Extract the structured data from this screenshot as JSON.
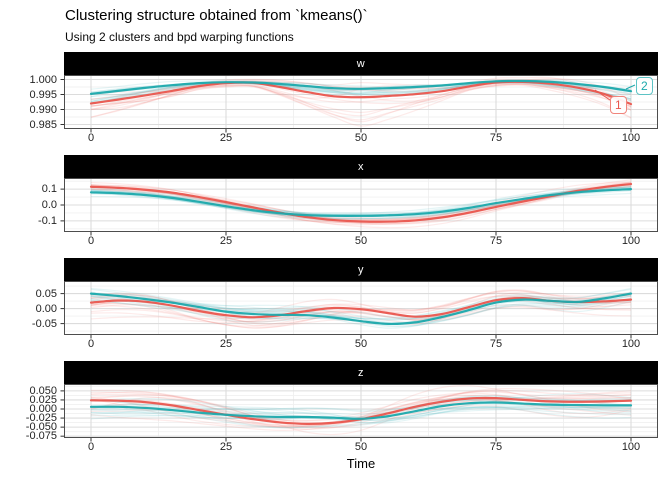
{
  "header": {
    "title": "Clustering structure obtained from `kmeans()`",
    "subtitle": "Using 2 clusters and bpd warping functions"
  },
  "colors": {
    "cluster1_mean": "#e9564e",
    "cluster1_member": "#f0857c",
    "cluster2_mean": "#1ca9ac",
    "cluster2_member": "#5cc3c5",
    "strip_bg": "#000000",
    "strip_text": "#ffffff",
    "grid_major": "#dcdcdc",
    "grid_minor": "#f0f0f0",
    "panel_border": "#4d4d4d",
    "panel_bg": "#ffffff",
    "tick": "#333333"
  },
  "legend": {
    "position": "inside top-right of facet w",
    "entries": [
      {
        "label": "1",
        "cluster": 1
      },
      {
        "label": "2",
        "cluster": 2
      }
    ]
  },
  "chart_data": {
    "type": "line",
    "title": "Clustering structure obtained from `kmeans()`",
    "subtitle": "Using 2 clusters and bpd warping functions",
    "xlabel": "Time",
    "grid": "major+minor",
    "x_domain": [
      -5,
      105
    ],
    "x_ticks": [
      0,
      25,
      50,
      75,
      100
    ],
    "x_minor": [
      12.5,
      37.5,
      62.5,
      87.5
    ],
    "x": [
      0,
      5,
      10,
      15,
      20,
      25,
      30,
      35,
      40,
      45,
      50,
      55,
      60,
      65,
      70,
      75,
      80,
      85,
      90,
      95,
      100
    ],
    "members_per_cluster": 14,
    "facets": [
      {
        "name": "w",
        "ylim": [
          0.9835,
          1.0015
        ],
        "yticks": [
          1.0,
          0.995,
          0.99,
          0.985
        ],
        "ytick_labels": [
          "1.000",
          "0.995",
          "0.990",
          "0.985"
        ],
        "yminor": [
          0.9975,
          0.9925,
          0.9875
        ],
        "pinch_at": [
          25,
          75
        ],
        "spread": {
          "cluster1": 0.0048,
          "cluster2": 0.002
        },
        "series": [
          {
            "name": "cluster 1 mean",
            "values": [
              0.992,
              0.9933,
              0.9947,
              0.9962,
              0.9978,
              0.9988,
              0.9989,
              0.9975,
              0.9958,
              0.9944,
              0.9941,
              0.9945,
              0.9951,
              0.9961,
              0.9977,
              0.999,
              0.9992,
              0.9986,
              0.9973,
              0.9952,
              0.9918
            ]
          },
          {
            "name": "cluster 2 mean",
            "values": [
              0.9952,
              0.9962,
              0.9972,
              0.9981,
              0.9988,
              0.9991,
              0.999,
              0.9985,
              0.9978,
              0.9971,
              0.9969,
              0.9971,
              0.9975,
              0.998,
              0.9988,
              0.9994,
              0.9995,
              0.9992,
              0.9985,
              0.9975,
              0.9961
            ]
          }
        ]
      },
      {
        "name": "x",
        "ylim": [
          -0.17,
          0.17
        ],
        "yticks": [
          0.1,
          0.0,
          -0.1
        ],
        "ytick_labels": [
          "0.1",
          "0.0",
          "-0.1"
        ],
        "yminor": [
          0.15,
          0.05,
          -0.05,
          -0.15
        ],
        "spread": {
          "cluster1": 0.02,
          "cluster2": 0.015
        },
        "series": [
          {
            "name": "cluster 1 mean",
            "values": [
              0.115,
              0.108,
              0.096,
              0.078,
              0.05,
              0.018,
              -0.015,
              -0.048,
              -0.076,
              -0.095,
              -0.104,
              -0.105,
              -0.097,
              -0.078,
              -0.048,
              -0.012,
              0.022,
              0.055,
              0.088,
              0.113,
              0.132
            ]
          },
          {
            "name": "cluster 2 mean",
            "values": [
              0.08,
              0.074,
              0.063,
              0.045,
              0.02,
              -0.008,
              -0.033,
              -0.052,
              -0.064,
              -0.068,
              -0.068,
              -0.065,
              -0.058,
              -0.042,
              -0.018,
              0.012,
              0.038,
              0.062,
              0.08,
              0.092,
              0.1
            ]
          }
        ]
      },
      {
        "name": "y",
        "ylim": [
          -0.088,
          0.092
        ],
        "yticks": [
          0.05,
          0.0,
          -0.05
        ],
        "ytick_labels": [
          "0.05",
          "0.00",
          "-0.05"
        ],
        "yminor": [
          0.075,
          0.025,
          -0.025,
          -0.075
        ],
        "spread": {
          "cluster1": 0.026,
          "cluster2": 0.018
        },
        "series": [
          {
            "name": "cluster 1 mean",
            "values": [
              0.02,
              0.027,
              0.023,
              0.01,
              -0.008,
              -0.022,
              -0.029,
              -0.022,
              -0.008,
              0.002,
              -0.002,
              -0.015,
              -0.027,
              -0.018,
              0.005,
              0.028,
              0.035,
              0.026,
              0.022,
              0.024,
              0.03
            ]
          },
          {
            "name": "cluster 2 mean",
            "values": [
              0.05,
              0.042,
              0.032,
              0.02,
              0.005,
              -0.01,
              -0.018,
              -0.021,
              -0.022,
              -0.03,
              -0.042,
              -0.051,
              -0.046,
              -0.028,
              -0.005,
              0.02,
              0.03,
              0.026,
              0.022,
              0.034,
              0.05
            ]
          }
        ]
      },
      {
        "name": "z",
        "ylim": [
          -0.08,
          0.069
        ],
        "yticks": [
          0.05,
          0.025,
          0.0,
          -0.025,
          -0.05,
          -0.075
        ],
        "ytick_labels": [
          "0.050",
          "0.025",
          "0.000",
          "-0.025",
          "-0.050",
          "-0.075"
        ],
        "yminor": [
          0.0625,
          0.0375,
          0.0125,
          -0.0125,
          -0.0375,
          -0.0625
        ],
        "spread": {
          "cluster1": 0.024,
          "cluster2": 0.017
        },
        "series": [
          {
            "name": "cluster 1 mean",
            "values": [
              0.024,
              0.023,
              0.019,
              0.01,
              -0.003,
              -0.016,
              -0.028,
              -0.037,
              -0.041,
              -0.038,
              -0.028,
              -0.012,
              0.006,
              0.02,
              0.029,
              0.03,
              0.025,
              0.021,
              0.02,
              0.021,
              0.023
            ]
          },
          {
            "name": "cluster 2 mean",
            "values": [
              0.006,
              0.006,
              0.003,
              -0.003,
              -0.01,
              -0.016,
              -0.02,
              -0.022,
              -0.022,
              -0.024,
              -0.027,
              -0.02,
              -0.006,
              0.008,
              0.016,
              0.018,
              0.015,
              0.012,
              0.011,
              0.01,
              0.01
            ]
          }
        ]
      }
    ]
  }
}
